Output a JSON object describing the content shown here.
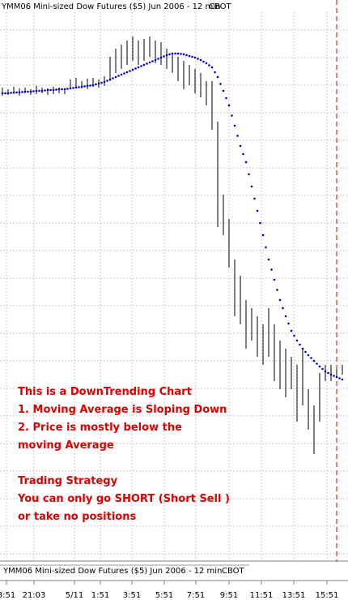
{
  "chart_data": {
    "type": "ohlc",
    "title": "YMM06 Mini-sized Dow Futures ($5) Jun 2006 - 12 min",
    "exchange": "CBOT",
    "x_labels": [
      "3:51",
      "21:03",
      "5/11",
      "1:51",
      "3:51",
      "5:51",
      "7:51",
      "9:51",
      "11:51",
      "13:51",
      "15:51"
    ],
    "ylim": [
      0,
      700
    ],
    "grid": true,
    "bar_color": "#000000",
    "high": [
      592,
      590,
      593,
      591,
      592,
      590,
      594,
      592,
      591,
      593,
      592,
      591,
      602,
      604,
      600,
      603,
      604,
      602,
      606,
      630,
      640,
      645,
      650,
      655,
      650,
      652,
      655,
      650,
      648,
      640,
      635,
      630,
      625,
      620,
      615,
      610,
      600,
      600,
      550,
      460,
      430,
      380,
      360,
      330,
      320,
      310,
      300,
      320,
      300,
      280,
      270,
      260,
      250,
      270,
      220,
      200,
      240,
      250,
      250,
      245,
      250
    ],
    "low": [
      582,
      583,
      584,
      582,
      585,
      583,
      584,
      585,
      583,
      584,
      585,
      584,
      590,
      592,
      591,
      590,
      593,
      592,
      594,
      600,
      610,
      615,
      620,
      625,
      620,
      625,
      630,
      622,
      620,
      615,
      610,
      600,
      590,
      595,
      585,
      580,
      570,
      540,
      420,
      410,
      370,
      310,
      300,
      270,
      280,
      260,
      250,
      260,
      230,
      220,
      210,
      220,
      180,
      200,
      170,
      140,
      180,
      230,
      230,
      235,
      238
    ],
    "moving_average": {
      "color": "#0000cc",
      "values": [
        585,
        585,
        586,
        586,
        587,
        587,
        588,
        588,
        589,
        589,
        590,
        590,
        591,
        592,
        593,
        594,
        595,
        597,
        599,
        602,
        605,
        608,
        611,
        614,
        617,
        620,
        623,
        626,
        629,
        632,
        634,
        634,
        633,
        631,
        629,
        626,
        622,
        617,
        605,
        588,
        570,
        545,
        520,
        500,
        470,
        440,
        410,
        380,
        355,
        330,
        310,
        292,
        280,
        270,
        262,
        255,
        248,
        242,
        238,
        235,
        232
      ]
    },
    "marker_color": "#cc0000",
    "annotation_color": "#dd0000",
    "annotations": [
      [
        "This is a DownTrending Chart",
        "1. Moving Average is Sloping Down",
        "2. Price is mostly below the",
        "moving Average"
      ],
      [
        "Trading Strategy",
        "You can only go SHORT (Short Sell )",
        "or take no positions"
      ]
    ]
  }
}
